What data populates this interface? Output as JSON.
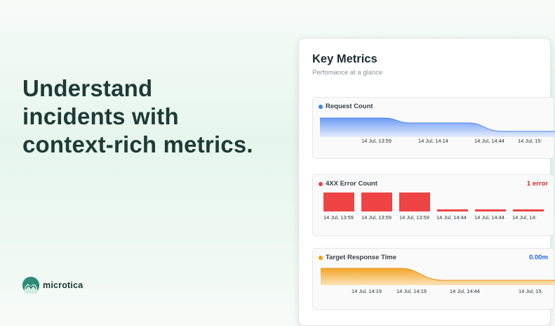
{
  "hero": {
    "line1": "Understand",
    "line2": "incidents with",
    "line3": "context-rich metrics."
  },
  "brand": {
    "name": "microtica",
    "logo_icon": "microtica-logo-icon"
  },
  "panel": {
    "title": "Key Metrics",
    "subtitle": "Perfomance at a glance"
  },
  "cards": {
    "request": {
      "title": "Request Count",
      "dot_color": "#3b82f6",
      "fill_color": "#7aa7f5",
      "ticks": [
        "14 Jul, 13:59",
        "14 Jul, 14:14",
        "14 Jul, 14:44",
        "14 Jul, 15:"
      ]
    },
    "errors": {
      "title": "4XX Error Count",
      "dot_color": "#ef4444",
      "right_label": "1 error",
      "right_color": "#dc2626",
      "ticks": [
        "14 Jul, 13:59",
        "14 Jul, 13:59",
        "14 Jul, 13:59",
        "14 Jul, 14:44",
        "14 Jul, 14:44",
        "14 Jul, 14:"
      ],
      "bar_levels": [
        1,
        1,
        1,
        0.1,
        0.1,
        0.1
      ]
    },
    "response": {
      "title": "Target Response Time",
      "dot_color": "#f59e0b",
      "fill_color": "#f6b64a",
      "right_label": "0.00m",
      "right_color": "#2563eb",
      "ticks": [
        "14 Jul, 14:19",
        "14 Jul, 14:19",
        "14 Jul, 14:44",
        "14 Jul, 15:"
      ]
    }
  }
}
